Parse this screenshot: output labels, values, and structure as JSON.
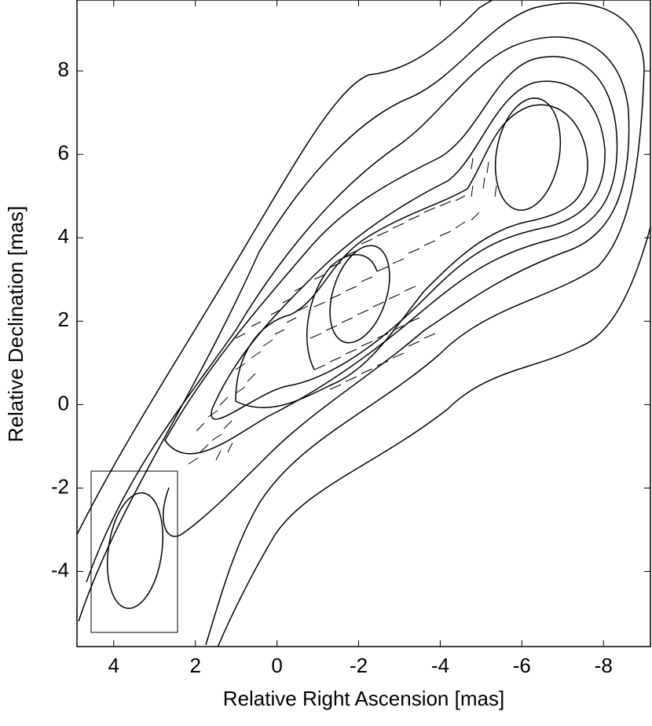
{
  "chart_data": {
    "type": "contour",
    "xlabel": "Relative Right Ascension [mas]",
    "ylabel": "Relative Declination [mas]",
    "xlim": [
      4.9,
      -9.15
    ],
    "ylim": [
      -5.8,
      9.7
    ],
    "xticks": [
      4,
      2,
      0,
      -2,
      -4,
      -6,
      -8
    ],
    "yticks": [
      -4,
      -2,
      0,
      2,
      4,
      6,
      8
    ]
  }
}
